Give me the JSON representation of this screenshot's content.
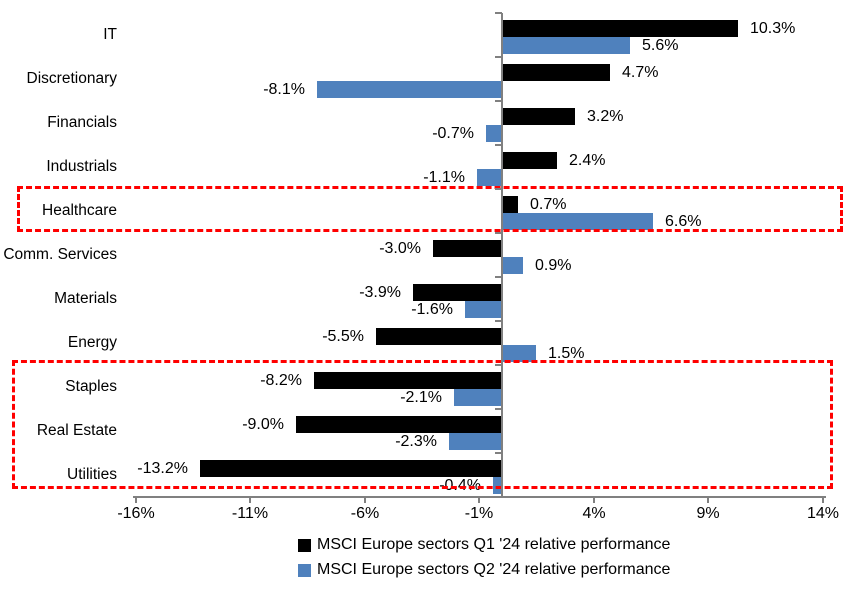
{
  "chart_data": {
    "type": "bar",
    "orientation": "horizontal",
    "title": "",
    "xlabel": "",
    "ylabel": "",
    "categories": [
      "IT",
      "Discretionary",
      "Financials",
      "Industrials",
      "Healthcare",
      "Comm. Services",
      "Materials",
      "Energy",
      "Staples",
      "Real Estate",
      "Utilities"
    ],
    "series": [
      {
        "name": "MSCI Europe sectors Q1 '24 relative performance",
        "color": "#000000",
        "values": [
          10.3,
          4.7,
          3.2,
          2.4,
          0.7,
          -3.0,
          -3.9,
          -5.5,
          -8.2,
          -9.0,
          -13.2
        ],
        "labels": [
          "10.3%",
          "4.7%",
          "3.2%",
          "2.4%",
          "0.7%",
          "-3.0%",
          "-3.9%",
          "-5.5%",
          "-8.2%",
          "-9.0%",
          "-13.2%"
        ]
      },
      {
        "name": "MSCI Europe sectors Q2 '24 relative performance",
        "color": "#4F81BD",
        "values": [
          5.6,
          -8.1,
          -0.7,
          -1.1,
          6.6,
          0.9,
          -1.6,
          1.5,
          -2.1,
          -2.3,
          -0.4
        ],
        "labels": [
          "5.6%",
          "-8.1%",
          "-0.7%",
          "-1.1%",
          "6.6%",
          "0.9%",
          "-1.6%",
          "1.5%",
          "-2.1%",
          "-2.3%",
          "-0.4%"
        ]
      }
    ],
    "xlim": [
      -16,
      14
    ],
    "x_tick_values": [
      -16,
      -11,
      -6,
      -1,
      4,
      9,
      14
    ],
    "x_tick_labels": [
      "-16%",
      "-11%",
      "-6%",
      "-1%",
      "4%",
      "9%",
      "14%"
    ],
    "grid": false,
    "legend_position": "bottom",
    "annotations": [
      {
        "type": "highlight-box",
        "style": "dashed",
        "color": "#FF0000",
        "sectors": [
          "Healthcare"
        ]
      },
      {
        "type": "highlight-box",
        "style": "dashed",
        "color": "#FF0000",
        "sectors": [
          "Staples",
          "Real Estate",
          "Utilities"
        ]
      }
    ]
  },
  "legend": {
    "items": [
      {
        "label": "MSCI Europe sectors Q1 '24 relative performance",
        "color": "#000000"
      },
      {
        "label": "MSCI Europe sectors Q2 '24 relative performance",
        "color": "#4F81BD"
      }
    ]
  },
  "colors": {
    "q1_bar": "#000000",
    "q2_bar": "#4F81BD",
    "annotation": "#FF0000",
    "axis": "#808080",
    "text": "#000000",
    "background": "#FFFFFF"
  }
}
